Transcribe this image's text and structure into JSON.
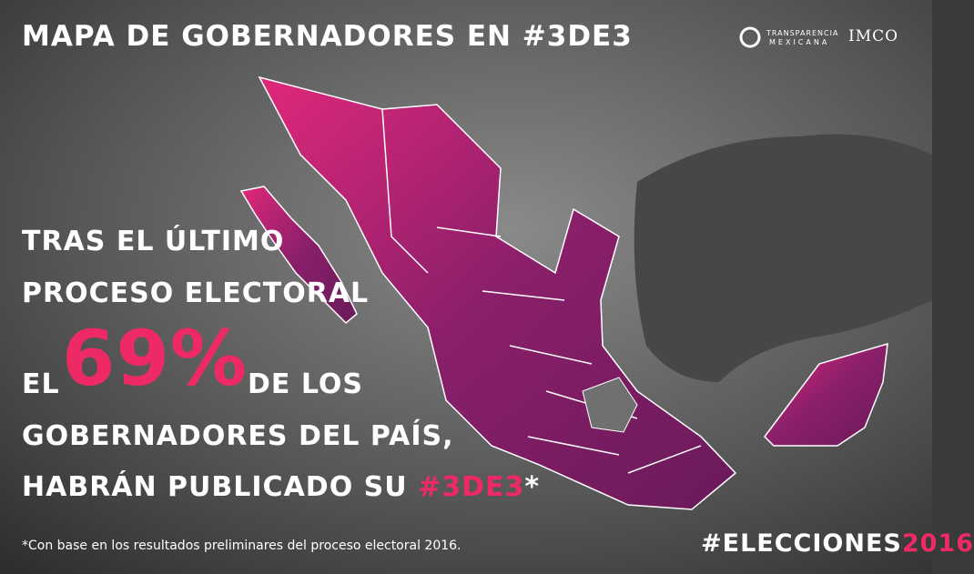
{
  "header": {
    "title": "MAPA DE GOBERNADORES EN #3DE3",
    "logos": [
      "TRANSPARENCIA",
      "MEXICANA",
      "IMCO"
    ]
  },
  "message": {
    "line1": "TRAS EL ÚLTIMO",
    "line2": "PROCESO ELECTORAL",
    "prefix": "EL",
    "highlight": "69%",
    "suffix": "DE LOS",
    "line4": "GOBERNADORES DEL PAÍS,",
    "line5": "HABRÁN PUBLICADO SU",
    "hashtag": "#3DE3",
    "asterisk": "*"
  },
  "footnote": "*Con base en los resultados preliminares del proceso electoral 2016.",
  "campaign": {
    "hashtag": "#ELECCIONES",
    "year": "2016"
  }
}
